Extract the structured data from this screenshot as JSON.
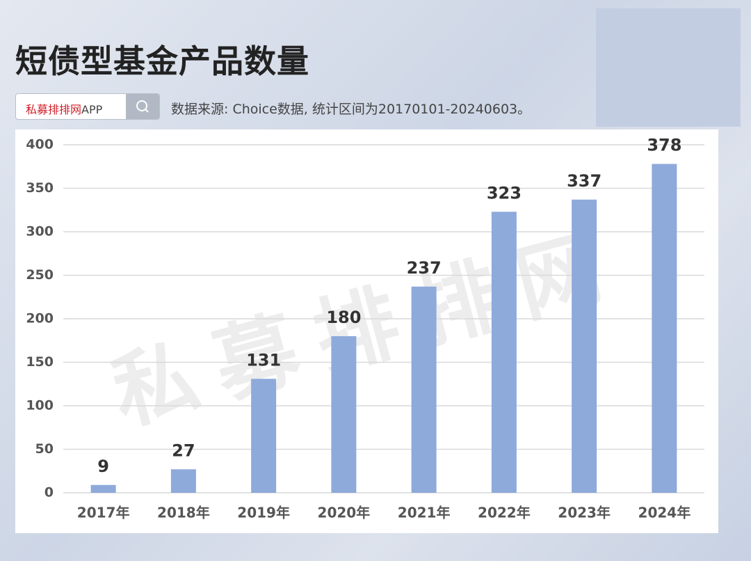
{
  "chart_data": {
    "type": "bar",
    "title": "短债型基金产品数量",
    "brand": "私募排排网",
    "brand_suffix": "APP",
    "source": "数据来源: Choice数据, 统计区间为20170101-20240603。",
    "watermark": "私募排排网",
    "categories": [
      "2017年",
      "2018年",
      "2019年",
      "2020年",
      "2021年",
      "2022年",
      "2023年",
      "2024年"
    ],
    "values": [
      9,
      27,
      131,
      180,
      237,
      323,
      337,
      378
    ],
    "color": "#8eaadb",
    "ylim": [
      0,
      400
    ],
    "yticks": [
      0,
      50,
      100,
      150,
      200,
      250,
      300,
      350,
      400
    ],
    "grid": true
  }
}
